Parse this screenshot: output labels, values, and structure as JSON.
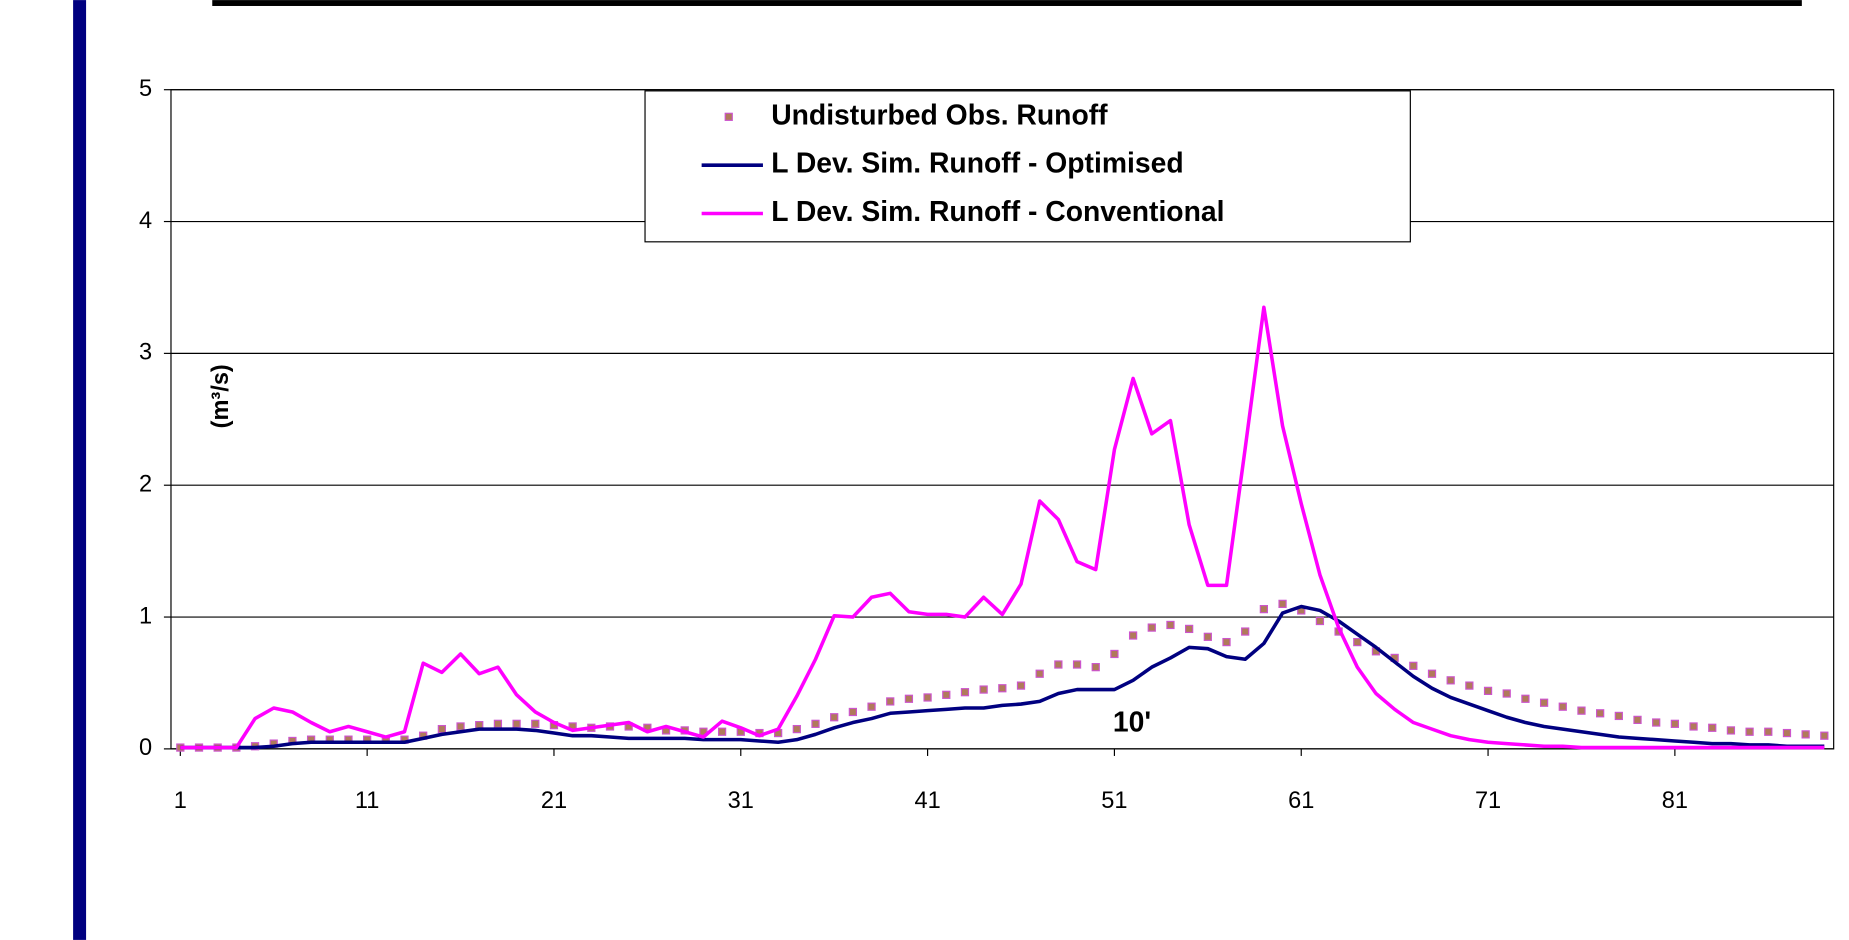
{
  "chart_data": {
    "type": "line",
    "ylabel": "(m³/s)",
    "annotation": "10'",
    "x": [
      1,
      2,
      3,
      4,
      5,
      6,
      7,
      8,
      9,
      10,
      11,
      12,
      13,
      14,
      15,
      16,
      17,
      18,
      19,
      20,
      21,
      22,
      23,
      24,
      25,
      26,
      27,
      28,
      29,
      30,
      31,
      32,
      33,
      34,
      35,
      36,
      37,
      38,
      39,
      40,
      41,
      42,
      43,
      44,
      45,
      46,
      47,
      48,
      49,
      50,
      51,
      52,
      53,
      54,
      55,
      56,
      57,
      58,
      59,
      60,
      61,
      62,
      63,
      64,
      65,
      66,
      67,
      68,
      69,
      70,
      71,
      72,
      73,
      74,
      75,
      76,
      77,
      78,
      79,
      80,
      81,
      82,
      83,
      84,
      85,
      86,
      87,
      88,
      89
    ],
    "xlim": [
      0.5,
      89.5
    ],
    "xticks": [
      1,
      11,
      21,
      31,
      41,
      51,
      61,
      71,
      81
    ],
    "ylim": [
      0,
      5
    ],
    "yticks": [
      0,
      1,
      2,
      3,
      4,
      5
    ],
    "grid": true,
    "legend": "top",
    "series": [
      {
        "name": "Undisturbed Obs. Runoff",
        "color": "#b07a5a",
        "style": "markers",
        "values": [
          0.01,
          0.01,
          0.01,
          0.01,
          0.02,
          0.04,
          0.06,
          0.07,
          0.07,
          0.07,
          0.07,
          0.07,
          0.07,
          0.1,
          0.15,
          0.17,
          0.18,
          0.19,
          0.19,
          0.19,
          0.18,
          0.17,
          0.16,
          0.17,
          0.17,
          0.16,
          0.14,
          0.14,
          0.13,
          0.13,
          0.13,
          0.12,
          0.12,
          0.15,
          0.19,
          0.24,
          0.28,
          0.32,
          0.36,
          0.38,
          0.39,
          0.41,
          0.43,
          0.45,
          0.46,
          0.48,
          0.57,
          0.64,
          0.64,
          0.62,
          0.72,
          0.86,
          0.92,
          0.94,
          0.91,
          0.85,
          0.81,
          0.89,
          1.06,
          1.1,
          1.05,
          0.97,
          0.89,
          0.81,
          0.74,
          0.69,
          0.63,
          0.57,
          0.52,
          0.48,
          0.44,
          0.42,
          0.38,
          0.35,
          0.32,
          0.29,
          0.27,
          0.25,
          0.22,
          0.2,
          0.19,
          0.17,
          0.16,
          0.14,
          0.13,
          0.13,
          0.12,
          0.11,
          0.1
        ]
      },
      {
        "name": "L Dev. Sim. Runoff - Optimised",
        "color": "#000080",
        "style": "line",
        "values": [
          0.01,
          0.01,
          0.01,
          0.01,
          0.01,
          0.02,
          0.04,
          0.05,
          0.05,
          0.05,
          0.05,
          0.05,
          0.05,
          0.08,
          0.11,
          0.13,
          0.15,
          0.15,
          0.15,
          0.14,
          0.12,
          0.1,
          0.1,
          0.09,
          0.08,
          0.08,
          0.08,
          0.08,
          0.07,
          0.07,
          0.07,
          0.06,
          0.05,
          0.07,
          0.11,
          0.16,
          0.2,
          0.23,
          0.27,
          0.28,
          0.29,
          0.3,
          0.31,
          0.31,
          0.33,
          0.34,
          0.36,
          0.42,
          0.45,
          0.45,
          0.45,
          0.52,
          0.62,
          0.69,
          0.77,
          0.76,
          0.7,
          0.68,
          0.8,
          1.03,
          1.08,
          1.05,
          0.97,
          0.87,
          0.77,
          0.66,
          0.55,
          0.46,
          0.39,
          0.34,
          0.29,
          0.24,
          0.2,
          0.17,
          0.15,
          0.13,
          0.11,
          0.09,
          0.08,
          0.07,
          0.06,
          0.05,
          0.04,
          0.04,
          0.03,
          0.03,
          0.02,
          0.02,
          0.02
        ]
      },
      {
        "name": "L Dev. Sim. Runoff - Conventional",
        "color": "#ff00ff",
        "style": "line",
        "values": [
          0.01,
          0.01,
          0.01,
          0.01,
          0.23,
          0.31,
          0.28,
          0.2,
          0.13,
          0.17,
          0.13,
          0.09,
          0.13,
          0.65,
          0.58,
          0.72,
          0.57,
          0.62,
          0.41,
          0.28,
          0.2,
          0.14,
          0.16,
          0.18,
          0.2,
          0.13,
          0.17,
          0.13,
          0.09,
          0.21,
          0.16,
          0.1,
          0.15,
          0.4,
          0.68,
          1.01,
          1.0,
          1.15,
          1.18,
          1.04,
          1.02,
          1.02,
          1.0,
          1.15,
          1.02,
          1.25,
          1.88,
          1.74,
          1.42,
          1.36,
          2.27,
          2.81,
          2.39,
          2.49,
          1.7,
          1.24,
          1.24,
          2.28,
          3.35,
          2.45,
          1.86,
          1.32,
          0.92,
          0.62,
          0.42,
          0.3,
          0.2,
          0.15,
          0.1,
          0.07,
          0.05,
          0.04,
          0.03,
          0.02,
          0.02,
          0.01,
          0.01,
          0.01,
          0.01,
          0.01,
          0.01,
          0.01,
          0.01,
          0.01,
          0.01,
          0.01,
          0.01,
          0.01,
          0.01
        ]
      }
    ]
  }
}
